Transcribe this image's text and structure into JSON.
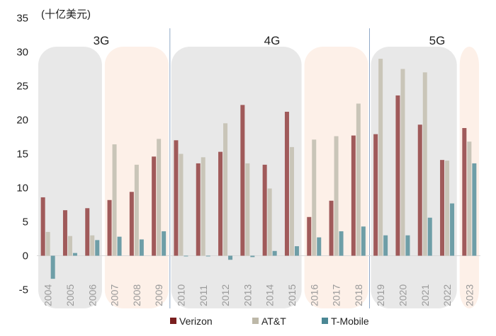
{
  "chart_data": {
    "type": "bar",
    "unit_label": "(十亿美元)",
    "categories": [
      "2004",
      "2005",
      "2006",
      "2007",
      "2008",
      "2009",
      "2010",
      "2011",
      "2012",
      "2013",
      "2014",
      "2015",
      "2016",
      "2017",
      "2018",
      "2019",
      "2020",
      "2021",
      "2022",
      "2023"
    ],
    "series": [
      {
        "name": "Verizon",
        "color": "#a05a5a",
        "legend_color": "#7a1f1f",
        "values": [
          8.6,
          6.7,
          7.0,
          8.2,
          9.4,
          14.6,
          17.0,
          13.6,
          15.3,
          22.2,
          13.4,
          21.2,
          5.7,
          8.1,
          17.7,
          17.9,
          23.6,
          19.3,
          14.1,
          18.8
        ]
      },
      {
        "name": "AT&T",
        "color": "#c9c5b8",
        "legend_color": "#bdb8a8",
        "values": [
          3.5,
          2.9,
          3.0,
          16.4,
          13.4,
          17.2,
          15.0,
          14.5,
          19.5,
          13.6,
          9.9,
          16.0,
          17.1,
          17.6,
          22.4,
          29.0,
          27.5,
          27.0,
          14.0,
          16.8
        ]
      },
      {
        "name": "T-Mobile",
        "color": "#6e9ea7",
        "legend_color": "#4a8794",
        "values": [
          -3.4,
          0.4,
          2.3,
          2.8,
          2.4,
          3.6,
          -0.1,
          -0.1,
          -0.6,
          -0.2,
          0.7,
          1.4,
          2.7,
          3.6,
          4.3,
          3.0,
          3.0,
          5.6,
          7.7,
          13.6
        ]
      }
    ],
    "ylim": [
      -5,
      35
    ],
    "yticks": [
      -5,
      0,
      5,
      10,
      15,
      20,
      25,
      30,
      35
    ],
    "eras": [
      {
        "label": "3G",
        "start": "2004",
        "end": "2009"
      },
      {
        "label": "4G",
        "start": "2010",
        "end": "2018"
      },
      {
        "label": "5G",
        "start": "2019",
        "end": "2023"
      }
    ],
    "groups": [
      {
        "start": 0,
        "end": 2,
        "fill": "#e8e8e8"
      },
      {
        "start": 3,
        "end": 5,
        "fill": "#fdf0e8"
      },
      {
        "start": 6,
        "end": 11,
        "fill": "#e8e8e8"
      },
      {
        "start": 12,
        "end": 14,
        "fill": "#fdf0e8"
      },
      {
        "start": 15,
        "end": 18,
        "fill": "#e8e8e8"
      },
      {
        "start": 19,
        "end": 19,
        "fill": "#fdf0e8"
      }
    ],
    "legend_position": "bottom"
  }
}
